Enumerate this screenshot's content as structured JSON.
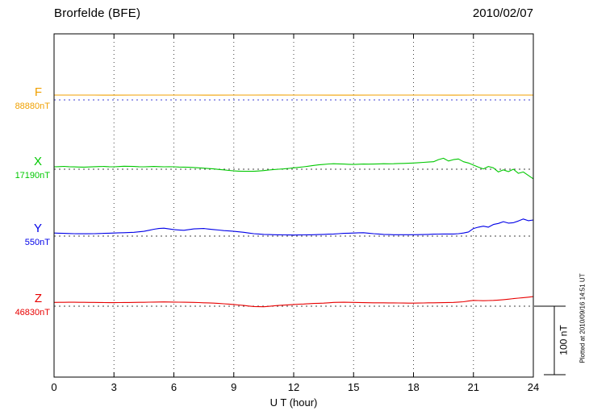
{
  "chart_data": {
    "type": "line",
    "title": "Brorfelde (BFE)",
    "date": "2010/02/07",
    "xlabel": "U T (hour)",
    "x_range": [
      0,
      24
    ],
    "x_ticks": [
      0,
      3,
      6,
      9,
      12,
      15,
      18,
      21,
      24
    ],
    "grid": "vertical-dotted",
    "legend_position": "left-margin",
    "scale_bar": {
      "label": "100 nT",
      "nanotesla": 100
    },
    "footnote": "Plotted at 2010/09/16 14:51 UT",
    "values_are": "deviation in nT from each component baseline",
    "series": [
      {
        "name": "F",
        "color": "#f0a000",
        "baseline_color": "#4040d0",
        "baseline_label": "88880nT",
        "baseline_nT": 88880,
        "dt_hours": 1.0,
        "values": [
          7.0,
          7.1,
          7.0,
          6.9,
          7.0,
          7.1,
          7.0,
          7.0,
          6.9,
          7.0,
          7.1,
          7.2,
          7.1,
          7.0,
          6.9,
          6.9,
          7.0,
          7.1,
          7.0,
          7.0,
          6.9,
          7.0,
          7.1,
          7.0,
          7.0
        ]
      },
      {
        "name": "X",
        "color": "#00c800",
        "baseline_color": "#404040",
        "baseline_label": "17190nT",
        "baseline_nT": 17190,
        "dt_hours": 0.25,
        "values": [
          3.5,
          3.8,
          4.1,
          3.7,
          3.4,
          3.2,
          3.0,
          3.3,
          3.6,
          3.9,
          4.0,
          3.7,
          3.5,
          3.9,
          4.4,
          4.2,
          4.0,
          3.7,
          3.5,
          3.8,
          4.0,
          3.8,
          3.5,
          3.6,
          3.5,
          3.2,
          3.0,
          2.8,
          2.5,
          2.0,
          1.5,
          1.0,
          0.5,
          -0.3,
          -1.0,
          -1.8,
          -2.5,
          -2.8,
          -3.0,
          -3.1,
          -3.0,
          -2.6,
          -2.0,
          -1.2,
          -0.5,
          0.0,
          0.5,
          1.2,
          2.0,
          2.7,
          3.5,
          4.5,
          5.5,
          6.3,
          7.0,
          7.6,
          8.0,
          7.8,
          7.5,
          7.2,
          7.0,
          7.3,
          7.5,
          7.4,
          7.5,
          7.8,
          8.0,
          7.9,
          8.0,
          8.3,
          8.5,
          8.7,
          9.0,
          9.5,
          10.0,
          10.5,
          11.0,
          14.0,
          16.0,
          12.0,
          14.0,
          15.0,
          11.0,
          9.0,
          6.0,
          3.0,
          0.5,
          4.0,
          2.0,
          -4.0,
          -1.0,
          -3.5,
          0.0,
          -6.0,
          -4.0,
          -9.0,
          -14.0
        ]
      },
      {
        "name": "Y",
        "color": "#0000e8",
        "baseline_color": "#404040",
        "baseline_label": "550nT",
        "baseline_nT": 550,
        "dt_hours": 0.25,
        "values": [
          4.5,
          4.2,
          4.0,
          3.8,
          3.5,
          3.4,
          3.5,
          3.4,
          3.5,
          3.8,
          4.0,
          4.2,
          4.5,
          4.8,
          5.0,
          5.2,
          5.5,
          6.2,
          7.0,
          8.5,
          10.0,
          11.0,
          11.5,
          10.5,
          9.5,
          9.0,
          8.5,
          9.5,
          10.5,
          10.8,
          11.0,
          10.2,
          9.5,
          8.8,
          8.0,
          7.5,
          7.0,
          6.2,
          5.5,
          4.5,
          3.5,
          3.0,
          2.5,
          2.2,
          2.0,
          1.9,
          1.8,
          1.6,
          1.5,
          1.6,
          1.8,
          1.9,
          2.0,
          2.2,
          2.5,
          2.8,
          3.0,
          3.5,
          4.0,
          4.2,
          4.5,
          4.8,
          5.0,
          4.2,
          3.5,
          3.0,
          2.5,
          2.2,
          2.0,
          2.0,
          2.0,
          2.0,
          2.0,
          2.1,
          2.2,
          2.5,
          2.8,
          2.9,
          3.0,
          3.0,
          3.0,
          3.5,
          4.5,
          6.0,
          11.0,
          13.0,
          14.5,
          13.0,
          17.0,
          18.5,
          21.0,
          19.0,
          19.5,
          22.0,
          25.0,
          22.5,
          23.5
        ]
      },
      {
        "name": "Z",
        "color": "#e80000",
        "baseline_color": "#404040",
        "baseline_label": "46830nT",
        "baseline_nT": 46830,
        "dt_hours": 0.25,
        "values": [
          5.5,
          5.6,
          5.7,
          5.8,
          5.8,
          5.7,
          5.6,
          5.5,
          5.5,
          5.4,
          5.3,
          5.2,
          5.2,
          5.3,
          5.4,
          5.4,
          5.5,
          5.6,
          5.7,
          5.9,
          6.0,
          6.1,
          6.2,
          6.1,
          6.0,
          5.9,
          5.8,
          5.6,
          5.5,
          5.3,
          5.0,
          4.8,
          4.5,
          4.0,
          3.5,
          3.0,
          2.5,
          1.8,
          1.0,
          0.2,
          -0.5,
          -0.7,
          -0.8,
          -0.2,
          0.5,
          1.0,
          1.5,
          2.0,
          2.5,
          2.9,
          3.2,
          3.6,
          4.0,
          4.2,
          4.5,
          5.0,
          5.5,
          5.7,
          5.8,
          5.6,
          5.5,
          5.4,
          5.2,
          5.1,
          5.0,
          4.9,
          4.9,
          4.8,
          4.8,
          4.7,
          4.6,
          4.5,
          4.5,
          4.6,
          4.7,
          4.9,
          5.0,
          5.1,
          5.2,
          5.4,
          5.5,
          6.0,
          6.5,
          7.5,
          8.5,
          8.2,
          8.0,
          8.2,
          8.5,
          9.0,
          9.5,
          10.2,
          11.0,
          11.8,
          12.5,
          13.2,
          14.0
        ]
      }
    ]
  }
}
